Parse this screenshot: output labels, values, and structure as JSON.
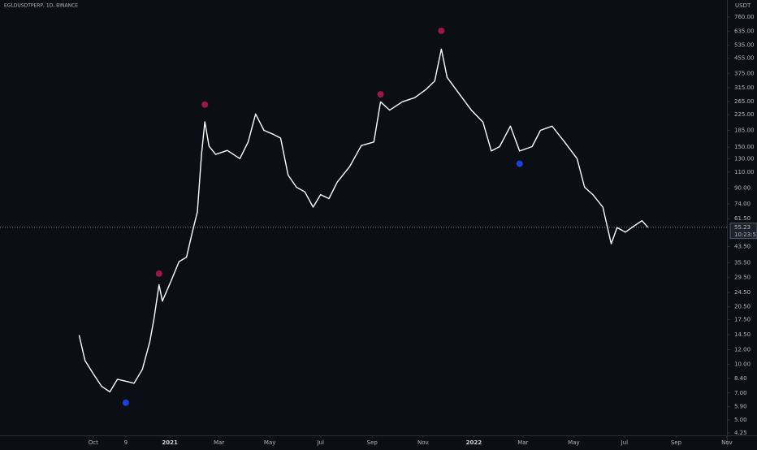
{
  "chart_data": {
    "type": "line",
    "title": "EGLDUSDTPERP, 1D, BINANCE",
    "unit": "USDT",
    "log_scale": true,
    "color": "#ffffff",
    "x": [
      "2020-09-14",
      "2020-09-21",
      "2020-10-01",
      "2020-10-11",
      "2020-10-21",
      "2020-10-30",
      "2020-11-09",
      "2020-11-19",
      "2020-11-29",
      "2020-12-08",
      "2020-12-13",
      "2020-12-19",
      "2020-12-23",
      "2021-01-02",
      "2021-01-12",
      "2021-01-21",
      "2021-01-28",
      "2021-02-03",
      "2021-02-08",
      "2021-02-12",
      "2021-02-17",
      "2021-02-25",
      "2021-03-11",
      "2021-03-26",
      "2021-04-05",
      "2021-04-14",
      "2021-04-24",
      "2021-05-04",
      "2021-05-14",
      "2021-05-23",
      "2021-06-02",
      "2021-06-12",
      "2021-06-22",
      "2021-07-01",
      "2021-07-11",
      "2021-07-21",
      "2021-08-05",
      "2021-08-19",
      "2021-09-03",
      "2021-09-11",
      "2021-09-22",
      "2021-10-07",
      "2021-10-22",
      "2021-11-05",
      "2021-11-15",
      "2021-11-23",
      "2021-11-30",
      "2021-12-14",
      "2021-12-29",
      "2022-01-12",
      "2022-01-22",
      "2022-02-01",
      "2022-02-14",
      "2022-02-25",
      "2022-03-12",
      "2022-03-22",
      "2022-04-05",
      "2022-04-20",
      "2022-05-05",
      "2022-05-14",
      "2022-05-24",
      "2022-06-05",
      "2022-06-15",
      "2022-06-22",
      "2022-07-02",
      "2022-07-12",
      "2022-07-22",
      "2022-07-29"
    ],
    "values": [
      14.4,
      10.5,
      8.9,
      7.6,
      7.1,
      8.3,
      8.1,
      7.9,
      9.4,
      13.3,
      17.8,
      27,
      22,
      28,
      36,
      38,
      52,
      67,
      137,
      206,
      152,
      137,
      144,
      130,
      160,
      227,
      185,
      177,
      168,
      106,
      91,
      86,
      71,
      83,
      79,
      97,
      118,
      153,
      160,
      264,
      238,
      264,
      278,
      309,
      342,
      510,
      358,
      294,
      238,
      205,
      143,
      151,
      195,
      143,
      151,
      185,
      195,
      160,
      130,
      91,
      83,
      71,
      45,
      55,
      52,
      56,
      60,
      55.23
    ],
    "signals": [
      {
        "x": "2020-12-19",
        "value": 31,
        "color": "#9c1748"
      },
      {
        "x": "2021-02-12",
        "value": 255,
        "color": "#9c1748"
      },
      {
        "x": "2021-09-11",
        "value": 290,
        "color": "#9c1748"
      },
      {
        "x": "2021-11-23",
        "value": 640,
        "color": "#9c1748"
      },
      {
        "x": "2020-11-09",
        "value": 6.2,
        "color": "#1e3fd8"
      },
      {
        "x": "2022-02-25",
        "value": 122,
        "color": "#1e3fd8"
      }
    ],
    "last_price": {
      "value": 55.23,
      "label": "55.23"
    },
    "countdown": "10:23:57",
    "xlim": [
      "2020-06-11",
      "2022-11-01"
    ],
    "xticks": [
      {
        "value": "2020-10-01",
        "label": "Oct"
      },
      {
        "value": "2020-11-09",
        "label": "9"
      },
      {
        "value": "2021-01-01",
        "label": "2021"
      },
      {
        "value": "2021-03-01",
        "label": "Mar"
      },
      {
        "value": "2021-05-01",
        "label": "May"
      },
      {
        "value": "2021-07-01",
        "label": "Jul"
      },
      {
        "value": "2021-09-01",
        "label": "Sep"
      },
      {
        "value": "2021-11-01",
        "label": "Nov"
      },
      {
        "value": "2022-01-01",
        "label": "2022"
      },
      {
        "value": "2022-03-01",
        "label": "Mar"
      },
      {
        "value": "2022-05-01",
        "label": "May"
      },
      {
        "value": "2022-07-01",
        "label": "Jul"
      },
      {
        "value": "2022-09-01",
        "label": "Sep"
      },
      {
        "value": "2022-11-01",
        "label": "Nov"
      }
    ],
    "ylim": [
      3.96,
      940
    ],
    "yticks": [
      {
        "value": 760,
        "label": "760.00"
      },
      {
        "value": 635,
        "label": "635.00"
      },
      {
        "value": 535,
        "label": "535.00"
      },
      {
        "value": 455,
        "label": "455.00"
      },
      {
        "value": 375,
        "label": "375.00"
      },
      {
        "value": 315,
        "label": "315.00"
      },
      {
        "value": 265,
        "label": "265.00"
      },
      {
        "value": 225,
        "label": "225.00"
      },
      {
        "value": 185,
        "label": "185.00"
      },
      {
        "value": 150,
        "label": "150.00"
      },
      {
        "value": 130,
        "label": "130.00"
      },
      {
        "value": 110,
        "label": "110.00"
      },
      {
        "value": 90,
        "label": "90.00"
      },
      {
        "value": 74,
        "label": "74.00"
      },
      {
        "value": 61.5,
        "label": "61.50"
      },
      {
        "value": 43.5,
        "label": "43.50"
      },
      {
        "value": 35.5,
        "label": "35.50"
      },
      {
        "value": 29.5,
        "label": "29.50"
      },
      {
        "value": 24.5,
        "label": "24.50"
      },
      {
        "value": 20.5,
        "label": "20.50"
      },
      {
        "value": 17.5,
        "label": "17.50"
      },
      {
        "value": 14.5,
        "label": "14.50"
      },
      {
        "value": 12,
        "label": "12.00"
      },
      {
        "value": 10,
        "label": "10.00"
      },
      {
        "value": 8.4,
        "label": "8.40"
      },
      {
        "value": 7,
        "label": "7.00"
      },
      {
        "value": 5.9,
        "label": "5.90"
      },
      {
        "value": 5,
        "label": "5.00"
      },
      {
        "value": 4.25,
        "label": "4.25"
      }
    ]
  }
}
